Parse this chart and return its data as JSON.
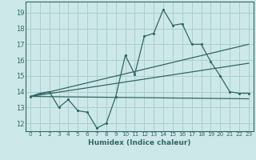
{
  "xlabel": "Humidex (Indice chaleur)",
  "ylabel": "",
  "bg_color": "#cde8e8",
  "grid_color": "#aacece",
  "line_color": "#336666",
  "xlim": [
    -0.5,
    23.5
  ],
  "ylim": [
    11.5,
    19.7
  ],
  "xticks": [
    0,
    1,
    2,
    3,
    4,
    5,
    6,
    7,
    8,
    9,
    10,
    11,
    12,
    13,
    14,
    15,
    16,
    17,
    18,
    19,
    20,
    21,
    22,
    23
  ],
  "yticks": [
    12,
    13,
    14,
    15,
    16,
    17,
    18,
    19
  ],
  "line1_x": [
    0,
    1,
    2,
    3,
    4,
    5,
    6,
    7,
    8,
    9,
    10,
    11,
    12,
    13,
    14,
    15,
    16,
    17,
    18,
    19,
    20,
    21,
    22,
    23
  ],
  "line1_y": [
    13.7,
    13.9,
    14.0,
    13.0,
    13.5,
    12.8,
    12.7,
    11.7,
    12.0,
    13.7,
    16.3,
    15.1,
    17.5,
    17.7,
    19.2,
    18.2,
    18.3,
    17.0,
    17.0,
    15.9,
    15.0,
    14.0,
    13.9,
    13.9
  ],
  "line2_x": [
    0,
    23
  ],
  "line2_y": [
    13.7,
    17.0
  ],
  "line3_x": [
    0,
    23
  ],
  "line3_y": [
    13.7,
    15.8
  ],
  "line4_x": [
    0,
    23
  ],
  "line4_y": [
    13.7,
    13.55
  ]
}
